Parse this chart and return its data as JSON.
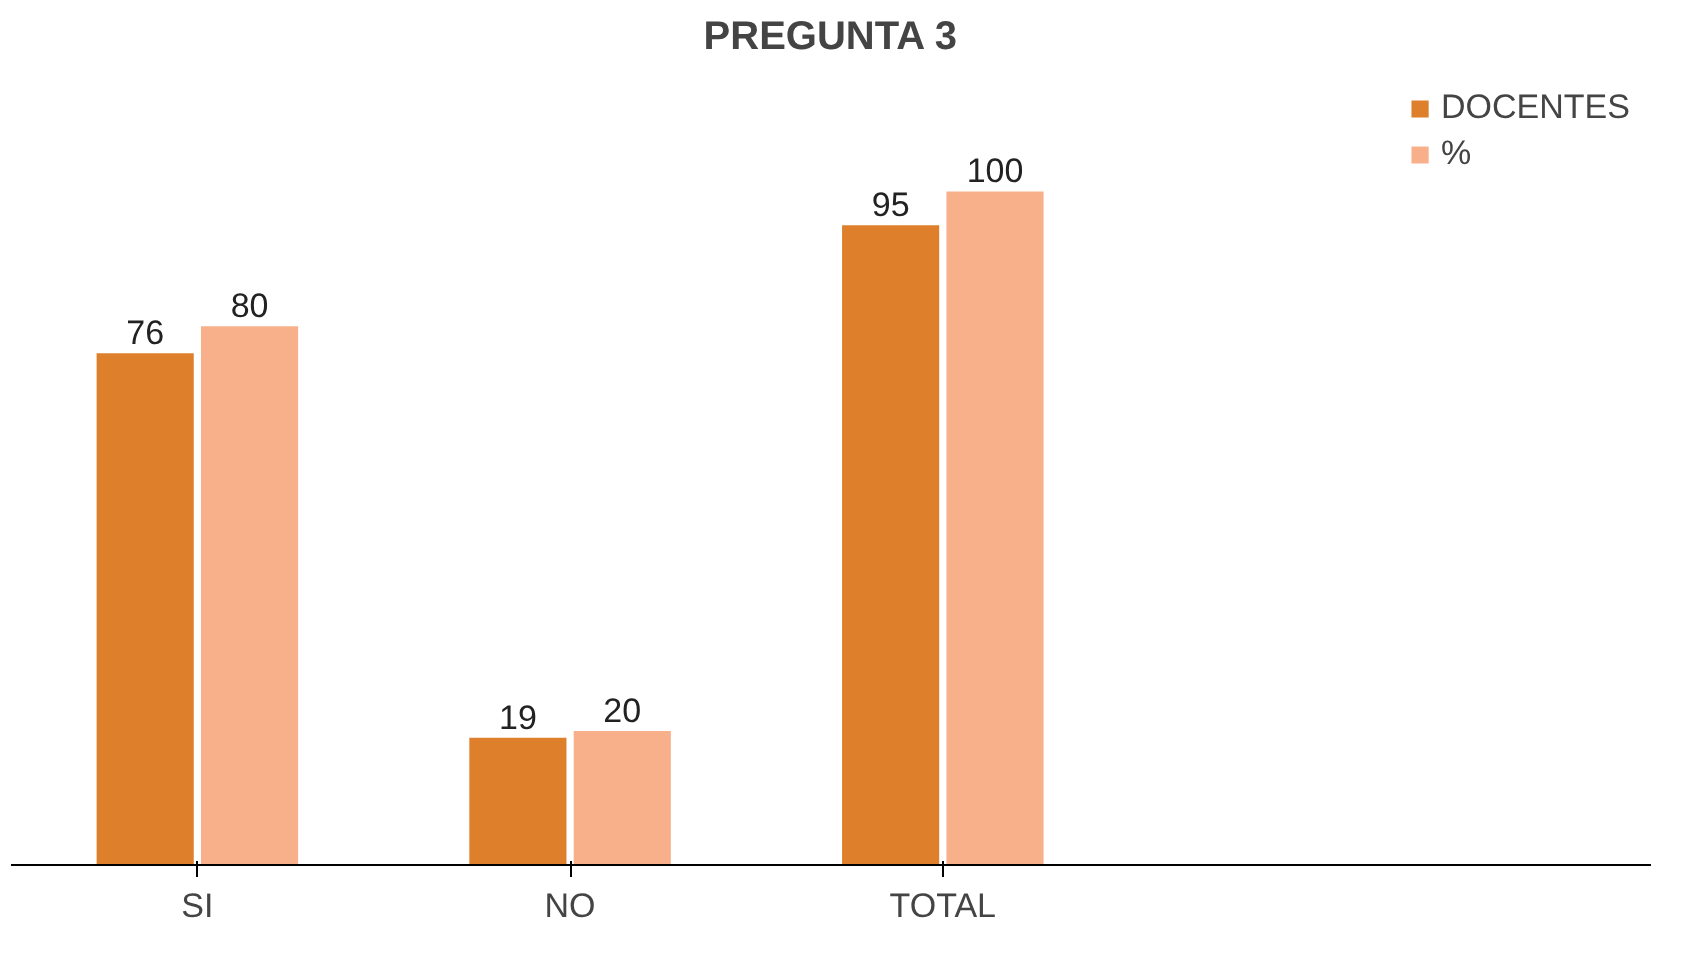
{
  "chart_data": {
    "type": "bar",
    "title": "PREGUNTA 3",
    "categories": [
      "SI",
      "NO",
      "TOTAL"
    ],
    "series": [
      {
        "name": "DOCENTES",
        "color": "#dd7f2b",
        "values": [
          76,
          19,
          95
        ]
      },
      {
        "name": "%",
        "color": "#f8b08a",
        "values": [
          80,
          20,
          100
        ]
      }
    ],
    "data_labels": true,
    "grid": false,
    "legend": "right"
  }
}
